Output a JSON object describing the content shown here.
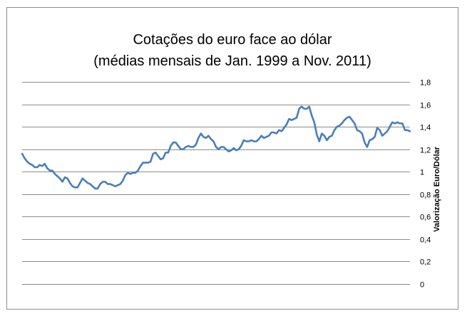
{
  "chart_data": {
    "type": "line",
    "title_lines": [
      "Cotações do euro face ao dólar",
      "(médias mensais de Jan. 1999 a Nov. 2011)"
    ],
    "ylabel": "Valorização  Euro/Dólar",
    "xlabel": "",
    "ylim": [
      0,
      1.8
    ],
    "yticks": [
      0,
      0.2,
      0.4,
      0.6,
      0.8,
      1,
      1.2,
      1.4,
      1.6,
      1.8
    ],
    "ytick_labels": [
      "0",
      "0,2",
      "0,4",
      "0,6",
      "0,8",
      "1",
      "1,2",
      "1,4",
      "1,6",
      "1,8"
    ],
    "y_axis_side": "right",
    "grid": true,
    "legend": "none",
    "line_color": "#4a7ebb",
    "series": [
      {
        "x_start": "1999-01",
        "x_end": "2011-11",
        "frequency": "monthly",
        "values": [
          1.16,
          1.12,
          1.09,
          1.07,
          1.06,
          1.04,
          1.04,
          1.06,
          1.05,
          1.07,
          1.03,
          1.01,
          1.01,
          0.98,
          0.96,
          0.94,
          0.91,
          0.95,
          0.94,
          0.9,
          0.87,
          0.86,
          0.86,
          0.9,
          0.94,
          0.92,
          0.9,
          0.89,
          0.87,
          0.85,
          0.85,
          0.89,
          0.91,
          0.91,
          0.89,
          0.89,
          0.88,
          0.87,
          0.88,
          0.89,
          0.92,
          0.97,
          0.99,
          0.98,
          0.99,
          0.99,
          1.01,
          1.05,
          1.08,
          1.08,
          1.08,
          1.09,
          1.16,
          1.17,
          1.14,
          1.11,
          1.12,
          1.17,
          1.17,
          1.23,
          1.26,
          1.26,
          1.23,
          1.2,
          1.2,
          1.22,
          1.23,
          1.22,
          1.22,
          1.24,
          1.3,
          1.34,
          1.31,
          1.3,
          1.32,
          1.29,
          1.27,
          1.22,
          1.2,
          1.22,
          1.22,
          1.2,
          1.18,
          1.19,
          1.21,
          1.19,
          1.2,
          1.23,
          1.28,
          1.27,
          1.27,
          1.28,
          1.27,
          1.27,
          1.29,
          1.32,
          1.3,
          1.31,
          1.32,
          1.35,
          1.35,
          1.34,
          1.37,
          1.36,
          1.39,
          1.42,
          1.47,
          1.46,
          1.47,
          1.48,
          1.56,
          1.58,
          1.56,
          1.56,
          1.58,
          1.5,
          1.44,
          1.33,
          1.27,
          1.34,
          1.32,
          1.28,
          1.31,
          1.32,
          1.37,
          1.4,
          1.41,
          1.43,
          1.46,
          1.48,
          1.49,
          1.46,
          1.43,
          1.37,
          1.36,
          1.34,
          1.26,
          1.22,
          1.28,
          1.29,
          1.31,
          1.39,
          1.37,
          1.32,
          1.34,
          1.36,
          1.4,
          1.44,
          1.43,
          1.44,
          1.43,
          1.43,
          1.37,
          1.37,
          1.36
        ]
      }
    ]
  }
}
